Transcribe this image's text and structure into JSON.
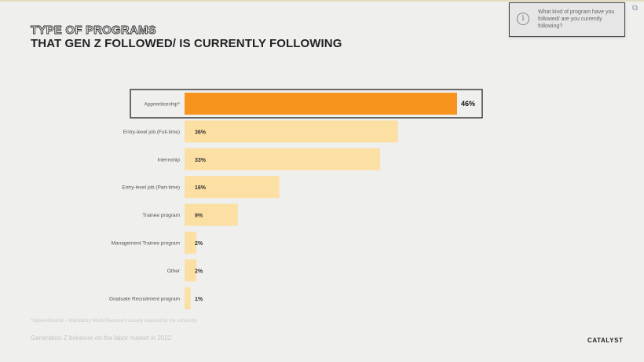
{
  "header": {
    "title_line1": "TYPE OF PROGRAMS",
    "title_line2": "THAT GEN Z FOLLOWED/ IS CURRENTLY FOLLOWING"
  },
  "tooltip": {
    "icon": "info-icon",
    "text": "What kind of program have you followed/ are you currently following?"
  },
  "chart_data": {
    "type": "bar",
    "orientation": "horizontal",
    "categories": [
      "Apprenticeship*",
      "Entry-level job (Full-time)",
      "Internship",
      "Entry-level job (Part-time)",
      "Trainee program",
      "Management Trainee program",
      "Other",
      "Graduate Recruitment program"
    ],
    "values": [
      46,
      36,
      33,
      16,
      9,
      2,
      2,
      1
    ],
    "value_labels": [
      "46%",
      "36%",
      "33%",
      "16%",
      "9%",
      "2%",
      "2%",
      "1%"
    ],
    "highlighted_index": 0,
    "colors": {
      "highlight": "#f7941d",
      "default": "#fcdfa3"
    },
    "xlim": [
      0,
      50
    ],
    "grid": false,
    "legend": "none"
  },
  "footnote": "*Apprenticeship – Mandatory Work Placement usually required by the university",
  "footer": {
    "source": "Generation Z behavior on the labor market in 2022",
    "logo": "CATALYST"
  }
}
